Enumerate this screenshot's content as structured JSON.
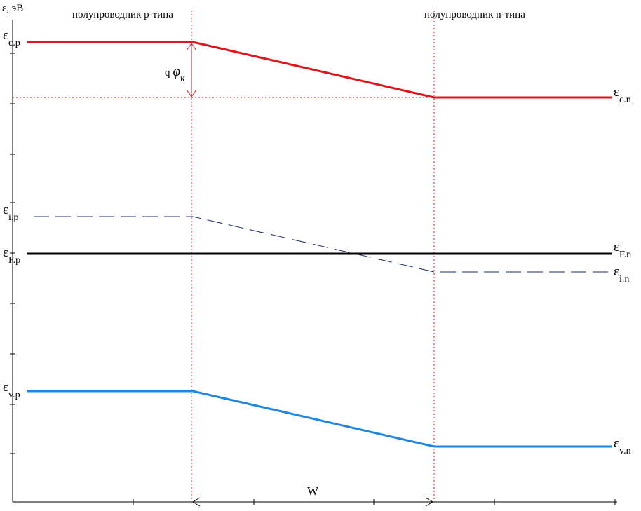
{
  "axis_label": "ε, эВ",
  "regions": {
    "p": "полупроводник p-типа",
    "n": "полупроводник n-типа"
  },
  "levels": {
    "cp": {
      "sym": "ε",
      "sub": "c.p"
    },
    "cn": {
      "sym": "ε",
      "sub": "c.n"
    },
    "ip": {
      "sym": "ε",
      "sub": "i.p"
    },
    "in": {
      "sym": "ε",
      "sub": "i.n"
    },
    "fp": {
      "sym": "ε",
      "sub": "F.p"
    },
    "fn": {
      "sym": "ε",
      "sub": "F.n"
    },
    "vp": {
      "sym": "ε",
      "sub": "v.p"
    },
    "vn": {
      "sym": "ε",
      "sub": "v.n"
    }
  },
  "barrier": {
    "q": "q",
    "phi": "φ",
    "sub": "к"
  },
  "width_label": "W",
  "colors": {
    "conduction": "#e0161c",
    "valence": "#1e88e0",
    "fermi": "#000000",
    "intrinsic": "#1a2a6c",
    "guides": "#e0161c"
  }
}
